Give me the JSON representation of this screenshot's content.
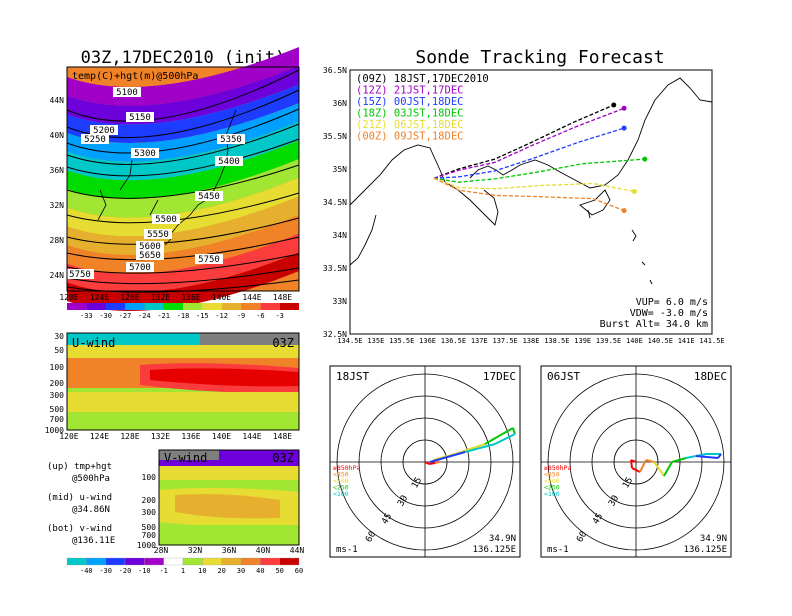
{
  "title_left": "03Z,17DEC2010 (init)",
  "title_right": "Sonde Tracking Forecast",
  "panel_top_left": {
    "label": "temp(C)+hgt(m)@500hPa",
    "lat_labels": [
      "44N",
      "40N",
      "36N",
      "32N",
      "28N",
      "24N"
    ],
    "lon_labels": [
      "120E",
      "124E",
      "128E",
      "132E",
      "136E",
      "140E",
      "144E",
      "148E"
    ],
    "contour_labels": [
      "5100",
      "5150",
      "5200",
      "5250",
      "5300",
      "5350",
      "5400",
      "5450",
      "5500",
      "5550",
      "5600",
      "5650",
      "5700",
      "5750",
      "5750"
    ],
    "colorbar_labels": [
      "-33",
      "-30",
      "-27",
      "-24",
      "-21",
      "-18",
      "-15",
      "-12",
      "-9",
      "-6",
      "-3"
    ],
    "colors": [
      "#a000c8",
      "#6e00dc",
      "#1e3cff",
      "#00a0ff",
      "#00c8c8",
      "#00dc00",
      "#a0e632",
      "#e6dc32",
      "#e6af2d",
      "#f08228",
      "#fa3c3c",
      "#c80000"
    ]
  },
  "panel_uwind": {
    "label": "U-wind",
    "time": "03Z",
    "p_labels": [
      "30",
      "50",
      "100",
      "200",
      "300",
      "500",
      "700",
      "1000"
    ],
    "lon_labels": [
      "120E",
      "124E",
      "128E",
      "132E",
      "136E",
      "140E",
      "144E",
      "148E"
    ]
  },
  "panel_vwind": {
    "label": "V-wind",
    "time": "03Z",
    "p_labels": [
      "100",
      "200",
      "300",
      "500",
      "700",
      "1000"
    ],
    "lat_labels": [
      "28N",
      "32N",
      "36N",
      "40N",
      "44N"
    ]
  },
  "side_legend": {
    "up": "(up) tmp+hgt",
    "up2": "@500hPa",
    "mid": "(mid) u-wind",
    "mid2": "@34.86N",
    "bot": "(bot) v-wind",
    "bot2": "@136.11E"
  },
  "wind_colorbar_labels": [
    "-40",
    "-30",
    "-20",
    "-10",
    "-1",
    "1",
    "10",
    "20",
    "30",
    "40",
    "50",
    "60"
  ],
  "wind_colors": [
    "#00c8c8",
    "#00a0ff",
    "#1e3cff",
    "#6e00dc",
    "#a000c8",
    "#ffffff",
    "#a0e632",
    "#e6dc32",
    "#e6af2d",
    "#f08228",
    "#fa3c3c",
    "#c80000"
  ],
  "tracking": {
    "legend": [
      {
        "text": "(09Z) 18JST,17DEC2010",
        "color": "#000000"
      },
      {
        "text": "(12Z) 21JST,17DEC",
        "color": "#a000c8"
      },
      {
        "text": "(15Z) 00JST,18DEC",
        "color": "#1e3cff"
      },
      {
        "text": "(18Z) 03JST,18DEC",
        "color": "#00c800"
      },
      {
        "text": "(21Z) 06JST,18DEC",
        "color": "#e6dc32"
      },
      {
        "text": "(00Z) 09JST,18DEC",
        "color": "#f08228"
      }
    ],
    "lat_labels": [
      "36.5N",
      "36N",
      "35.5N",
      "35N",
      "34.5N",
      "34N",
      "33.5N",
      "33N",
      "32.5N"
    ],
    "lon_labels": [
      "134.5E",
      "135E",
      "135.5E",
      "136E",
      "136.5E",
      "137E",
      "137.5E",
      "138E",
      "138.5E",
      "139E",
      "139.5E",
      "140E",
      "140.5E",
      "141E",
      "141.5E"
    ],
    "params": {
      "vup": "VUP= 6.0 m/s",
      "vdw": "VDW= -3.0 m/s",
      "burst": "Burst Alt= 34.0 km"
    }
  },
  "chart_data": {
    "type": "line",
    "title": "Sonde Tracking Forecast",
    "xlim": [
      134.5,
      141.5
    ],
    "ylim": [
      32.5,
      36.5
    ],
    "launch": {
      "lon": 136.125,
      "lat": 34.86
    },
    "series": [
      {
        "name": "(09Z) 18JST,17DEC2010",
        "color": "#000000",
        "points": [
          [
            136.125,
            34.86
          ],
          [
            136.6,
            35.0
          ],
          [
            137.3,
            35.15
          ],
          [
            138.0,
            35.4
          ],
          [
            138.8,
            35.7
          ],
          [
            139.6,
            35.97
          ]
        ]
      },
      {
        "name": "(12Z) 21JST,17DEC",
        "color": "#a000c8",
        "points": [
          [
            136.125,
            34.86
          ],
          [
            136.6,
            34.98
          ],
          [
            137.3,
            35.1
          ],
          [
            138.0,
            35.35
          ],
          [
            138.9,
            35.65
          ],
          [
            139.8,
            35.92
          ]
        ]
      },
      {
        "name": "(15Z) 00JST,18DEC",
        "color": "#1e3cff",
        "points": [
          [
            136.125,
            34.86
          ],
          [
            136.6,
            34.88
          ],
          [
            137.3,
            34.97
          ],
          [
            138.0,
            35.15
          ],
          [
            138.9,
            35.4
          ],
          [
            139.8,
            35.62
          ]
        ]
      },
      {
        "name": "(18Z) 03JST,18DEC",
        "color": "#00c800",
        "points": [
          [
            136.125,
            34.86
          ],
          [
            136.6,
            34.8
          ],
          [
            137.3,
            34.85
          ],
          [
            138.1,
            34.95
          ],
          [
            139.0,
            35.08
          ],
          [
            140.2,
            35.15
          ]
        ]
      },
      {
        "name": "(21Z) 06JST,18DEC",
        "color": "#e6dc32",
        "points": [
          [
            136.125,
            34.86
          ],
          [
            136.6,
            34.72
          ],
          [
            137.3,
            34.7
          ],
          [
            138.2,
            34.75
          ],
          [
            139.2,
            34.78
          ],
          [
            140.0,
            34.66
          ]
        ]
      },
      {
        "name": "(00Z) 09JST,18DEC",
        "color": "#f08228",
        "points": [
          [
            136.125,
            34.86
          ],
          [
            136.6,
            34.68
          ],
          [
            137.3,
            34.6
          ],
          [
            138.2,
            34.58
          ],
          [
            139.2,
            34.55
          ],
          [
            139.8,
            34.37
          ]
        ]
      }
    ]
  },
  "hodo_left": {
    "time": "18JST",
    "date": "17DEC",
    "lat": "34.9N",
    "lon": "136.125E",
    "unit": "ms-1",
    "levels": [
      "≥850hPa",
      "<850",
      "<500",
      "<250",
      "<100"
    ],
    "ring_labels": [
      "15",
      "30",
      "45",
      "60"
    ]
  },
  "hodo_right": {
    "time": "06JST",
    "date": "18DEC",
    "lat": "34.9N",
    "lon": "136.125E",
    "unit": "ms-1",
    "levels": [
      "≥850hPa",
      "<850",
      "<500",
      "<250",
      "<100"
    ],
    "ring_labels": [
      "15",
      "30",
      "45",
      "60"
    ]
  },
  "level_colors": [
    "#fa0000",
    "#f08228",
    "#e6dc32",
    "#00c800",
    "#00c8c8",
    "#1e3cff"
  ]
}
